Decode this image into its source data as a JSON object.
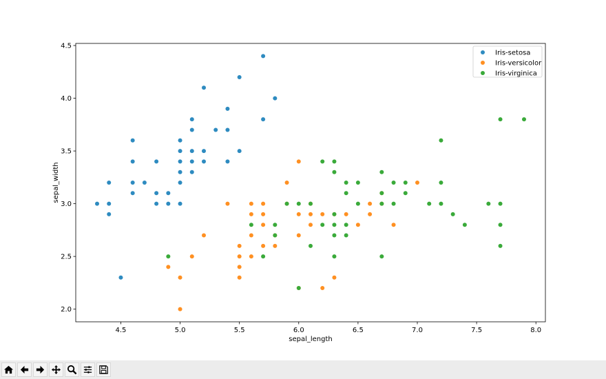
{
  "chart_data": {
    "type": "scatter",
    "title": "",
    "xlabel": "sepal_length",
    "ylabel": "sepal_width",
    "xlim": [
      4.12,
      8.08
    ],
    "ylim": [
      1.88,
      4.52
    ],
    "xticks": [
      "4.5",
      "5.0",
      "5.5",
      "6.0",
      "6.5",
      "7.0",
      "7.5",
      "8.0"
    ],
    "yticks": [
      "2.0",
      "2.5",
      "3.0",
      "3.5",
      "4.0",
      "4.5"
    ],
    "grid": false,
    "legend_position": "upper right",
    "series": [
      {
        "name": "Iris-setosa",
        "color": "#2e8bc0",
        "points": [
          [
            4.3,
            3.0
          ],
          [
            4.4,
            3.2
          ],
          [
            4.4,
            3.0
          ],
          [
            4.4,
            2.9
          ],
          [
            4.5,
            2.3
          ],
          [
            4.6,
            3.6
          ],
          [
            4.6,
            3.4
          ],
          [
            4.6,
            3.2
          ],
          [
            4.6,
            3.1
          ],
          [
            4.7,
            3.2
          ],
          [
            4.8,
            3.4
          ],
          [
            4.8,
            3.1
          ],
          [
            4.8,
            3.0
          ],
          [
            4.9,
            3.1
          ],
          [
            4.9,
            3.0
          ],
          [
            5.0,
            3.6
          ],
          [
            5.0,
            3.5
          ],
          [
            5.0,
            3.4
          ],
          [
            5.0,
            3.3
          ],
          [
            5.0,
            3.2
          ],
          [
            5.0,
            3.0
          ],
          [
            5.1,
            3.8
          ],
          [
            5.1,
            3.7
          ],
          [
            5.1,
            3.5
          ],
          [
            5.1,
            3.4
          ],
          [
            5.1,
            3.3
          ],
          [
            5.2,
            4.1
          ],
          [
            5.2,
            3.5
          ],
          [
            5.2,
            3.4
          ],
          [
            5.3,
            3.7
          ],
          [
            5.4,
            3.9
          ],
          [
            5.4,
            3.7
          ],
          [
            5.4,
            3.4
          ],
          [
            5.5,
            4.2
          ],
          [
            5.5,
            3.5
          ],
          [
            5.7,
            4.4
          ],
          [
            5.7,
            3.8
          ],
          [
            5.8,
            4.0
          ]
        ]
      },
      {
        "name": "Iris-versicolor",
        "color": "#ff9022",
        "points": [
          [
            4.9,
            2.4
          ],
          [
            5.0,
            2.3
          ],
          [
            5.0,
            2.0
          ],
          [
            5.1,
            2.5
          ],
          [
            5.2,
            2.7
          ],
          [
            5.4,
            3.0
          ],
          [
            5.5,
            2.6
          ],
          [
            5.5,
            2.5
          ],
          [
            5.5,
            2.4
          ],
          [
            5.5,
            2.3
          ],
          [
            5.6,
            3.0
          ],
          [
            5.6,
            2.9
          ],
          [
            5.6,
            2.7
          ],
          [
            5.6,
            2.5
          ],
          [
            5.7,
            3.0
          ],
          [
            5.7,
            2.9
          ],
          [
            5.7,
            2.8
          ],
          [
            5.7,
            2.6
          ],
          [
            5.8,
            2.7
          ],
          [
            5.8,
            2.6
          ],
          [
            5.9,
            3.2
          ],
          [
            5.9,
            3.0
          ],
          [
            6.0,
            3.4
          ],
          [
            6.0,
            2.9
          ],
          [
            6.0,
            2.7
          ],
          [
            6.0,
            2.2
          ],
          [
            6.1,
            3.0
          ],
          [
            6.1,
            2.9
          ],
          [
            6.1,
            2.8
          ],
          [
            6.2,
            2.9
          ],
          [
            6.2,
            2.2
          ],
          [
            6.3,
            2.9
          ],
          [
            6.3,
            2.3
          ],
          [
            6.4,
            2.9
          ],
          [
            6.5,
            2.8
          ],
          [
            6.6,
            3.0
          ],
          [
            6.6,
            2.9
          ],
          [
            6.7,
            3.0
          ],
          [
            6.7,
            3.1
          ],
          [
            6.8,
            2.8
          ],
          [
            7.0,
            3.2
          ]
        ]
      },
      {
        "name": "Iris-virginica",
        "color": "#3aaa3a",
        "points": [
          [
            4.9,
            2.5
          ],
          [
            5.6,
            2.8
          ],
          [
            5.7,
            2.5
          ],
          [
            5.8,
            2.8
          ],
          [
            5.8,
            2.7
          ],
          [
            5.9,
            3.0
          ],
          [
            6.0,
            3.0
          ],
          [
            6.0,
            2.2
          ],
          [
            6.1,
            3.0
          ],
          [
            6.1,
            2.6
          ],
          [
            6.2,
            3.4
          ],
          [
            6.2,
            2.8
          ],
          [
            6.3,
            3.4
          ],
          [
            6.3,
            3.3
          ],
          [
            6.3,
            2.9
          ],
          [
            6.3,
            2.8
          ],
          [
            6.3,
            2.7
          ],
          [
            6.3,
            2.5
          ],
          [
            6.4,
            3.2
          ],
          [
            6.4,
            3.1
          ],
          [
            6.4,
            2.8
          ],
          [
            6.4,
            2.7
          ],
          [
            6.5,
            3.2
          ],
          [
            6.5,
            3.0
          ],
          [
            6.7,
            3.3
          ],
          [
            6.7,
            3.1
          ],
          [
            6.7,
            3.0
          ],
          [
            6.7,
            2.5
          ],
          [
            6.8,
            3.2
          ],
          [
            6.8,
            3.0
          ],
          [
            6.9,
            3.2
          ],
          [
            6.9,
            3.1
          ],
          [
            7.1,
            3.0
          ],
          [
            7.2,
            3.6
          ],
          [
            7.2,
            3.2
          ],
          [
            7.2,
            3.0
          ],
          [
            7.3,
            2.9
          ],
          [
            7.4,
            2.8
          ],
          [
            7.6,
            3.0
          ],
          [
            7.7,
            3.8
          ],
          [
            7.7,
            3.0
          ],
          [
            7.7,
            2.8
          ],
          [
            7.7,
            2.6
          ],
          [
            7.9,
            3.8
          ]
        ]
      }
    ]
  },
  "toolbar": {
    "buttons": [
      {
        "name": "home-button",
        "icon": "home-icon"
      },
      {
        "name": "back-button",
        "icon": "arrow-left-icon"
      },
      {
        "name": "forward-button",
        "icon": "arrow-right-icon"
      },
      {
        "name": "pan-button",
        "icon": "move-icon"
      },
      {
        "name": "zoom-button",
        "icon": "magnifier-icon"
      },
      {
        "name": "configure-subplots-button",
        "icon": "sliders-icon"
      },
      {
        "name": "save-button",
        "icon": "floppy-disk-icon"
      }
    ]
  }
}
